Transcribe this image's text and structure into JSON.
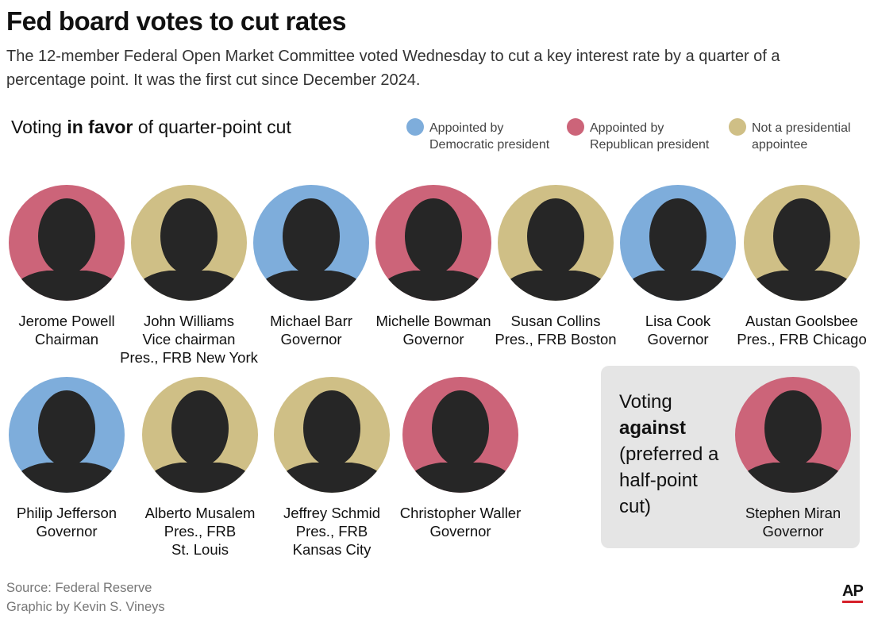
{
  "title": "Fed board votes to cut rates",
  "subtitle": "The 12-member Federal Open Market Committee voted Wednesday to cut a key interest rate by a quarter of a percentage point. It was the first cut since December 2024.",
  "favor_heading": {
    "before": "Voting",
    "bold": "in favor",
    "after": "of quarter-point cut"
  },
  "legend": [
    {
      "label": [
        "Appointed by",
        "Democratic president"
      ],
      "color": "#7eaddb"
    },
    {
      "label": [
        "Appointed by",
        "Republican president"
      ],
      "color": "#cc6479"
    },
    {
      "label": [
        "Not a presidential",
        "appointee"
      ],
      "color": "#cfbf86"
    }
  ],
  "favor": [
    {
      "name": "Jerome Powell",
      "roles": [
        "Chairman"
      ],
      "color": "#cc6479"
    },
    {
      "name": "John Williams",
      "roles": [
        "Vice chairman",
        "Pres., FRB New York"
      ],
      "color": "#cfbf86"
    },
    {
      "name": "Michael Barr",
      "roles": [
        "Governor"
      ],
      "color": "#7eaddb"
    },
    {
      "name": "Michelle Bowman",
      "roles": [
        "Governor"
      ],
      "color": "#cc6479"
    },
    {
      "name": "Susan Collins",
      "roles": [
        "Pres., FRB Boston"
      ],
      "color": "#cfbf86"
    },
    {
      "name": "Lisa Cook",
      "roles": [
        "Governor"
      ],
      "color": "#7eaddb"
    },
    {
      "name": "Austan Goolsbee",
      "roles": [
        "Pres., FRB Chicago"
      ],
      "color": "#cfbf86"
    },
    {
      "name": "Philip Jefferson",
      "roles": [
        "Governor"
      ],
      "color": "#7eaddb"
    },
    {
      "name": "Alberto Musalem",
      "roles": [
        "Pres., FRB",
        "St. Louis"
      ],
      "color": "#cfbf86"
    },
    {
      "name": "Jeffrey Schmid",
      "roles": [
        "Pres., FRB",
        "Kansas City"
      ],
      "color": "#cfbf86"
    },
    {
      "name": "Christopher Waller",
      "roles": [
        "Governor"
      ],
      "color": "#cc6479"
    }
  ],
  "against_heading": {
    "before": "Voting",
    "bold": "against",
    "after": "(preferred a half-point cut)"
  },
  "against": [
    {
      "name": "Stephen Miran",
      "roles": [
        "Governor"
      ],
      "color": "#cc6479"
    }
  ],
  "source": "Source: Federal Reserve",
  "credit": "Graphic by Kevin S. Vineys",
  "logo": "AP"
}
